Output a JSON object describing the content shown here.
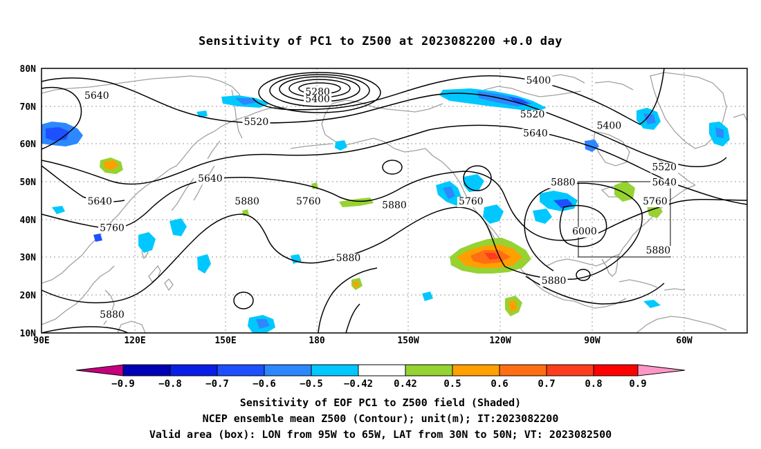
{
  "title": "Sensitivity of PC1 to Z500 at 2023082200 +0.0 day",
  "axes": {
    "lat_labels": [
      "80N",
      "70N",
      "60N",
      "50N",
      "40N",
      "30N",
      "20N",
      "10N"
    ],
    "lon_labels": [
      "90E",
      "120E",
      "150E",
      "180",
      "150W",
      "120W",
      "90W",
      "60W"
    ]
  },
  "contour_labels": [
    {
      "text": "5640",
      "lon": 108,
      "lat": 72
    },
    {
      "text": "5280",
      "lon": 180,
      "lat": 73
    },
    {
      "text": "5400",
      "lon": 180,
      "lat": 71
    },
    {
      "text": "5520",
      "lon": 160,
      "lat": 65
    },
    {
      "text": "5640",
      "lon": 145,
      "lat": 50
    },
    {
      "text": "5640",
      "lon": 109,
      "lat": 44
    },
    {
      "text": "5760",
      "lon": 113,
      "lat": 37
    },
    {
      "text": "5880",
      "lon": 157,
      "lat": 44
    },
    {
      "text": "5880",
      "lon": 113,
      "lat": 14
    },
    {
      "text": "5760",
      "lon": 177,
      "lat": 44
    },
    {
      "text": "5880",
      "lon": 205,
      "lat": 43
    },
    {
      "text": "5880",
      "lon": 190,
      "lat": 29
    },
    {
      "text": "5760",
      "lon": 230,
      "lat": 44
    },
    {
      "text": "5400",
      "lon": 252,
      "lat": 76
    },
    {
      "text": "5520",
      "lon": 250,
      "lat": 67
    },
    {
      "text": "5640",
      "lon": 251,
      "lat": 62
    },
    {
      "text": "5400",
      "lon": 275,
      "lat": 64
    },
    {
      "text": "5520",
      "lon": 293,
      "lat": 53
    },
    {
      "text": "5640",
      "lon": 293,
      "lat": 49
    },
    {
      "text": "5760",
      "lon": 290,
      "lat": 44
    },
    {
      "text": "5880",
      "lon": 260,
      "lat": 49
    },
    {
      "text": "6000",
      "lon": 267,
      "lat": 36
    },
    {
      "text": "5880",
      "lon": 291,
      "lat": 31
    },
    {
      "text": "5880",
      "lon": 257,
      "lat": 23
    }
  ],
  "colorbar": {
    "labels": [
      "−0.9",
      "−0.8",
      "−0.7",
      "−0.6",
      "−0.5",
      "−0.42",
      "0.42",
      "0.5",
      "0.6",
      "0.7",
      "0.8",
      "0.9"
    ],
    "colors": {
      "lt_-0.9": "#c4007c",
      "-0.9_-0.8": "#0000b4",
      "-0.8_-0.7": "#0a1ee6",
      "-0.7_-0.6": "#1e50ff",
      "-0.6_-0.5": "#2d87ff",
      "-0.5_-0.42": "#00c8ff",
      "-0.42_0.42": "#ffffff",
      "0.42_0.5": "#96d232",
      "0.5_0.6": "#ffa000",
      "0.6_0.7": "#ff6e14",
      "0.7_0.8": "#ff3c1e",
      "0.8_0.9": "#ff0000",
      "gt_0.9": "#ff96c8"
    }
  },
  "valid_area": {
    "lon_from": "95W",
    "lon_to": "65W",
    "lat_from": "30N",
    "lat_to": "50N"
  },
  "captions": {
    "line1": "Sensitivity of EOF PC1 to Z500 field (Shaded)",
    "line2": "NCEP ensemble mean Z500 (Contour); unit(m); IT:2023082200",
    "line3": "Valid area (box): LON from 95W to 65W, LAT from 30N to 50N; VT: 2023082500"
  },
  "colors": {
    "coastline": "#a0a0a0",
    "contour": "#000000",
    "grid": "#999999"
  }
}
